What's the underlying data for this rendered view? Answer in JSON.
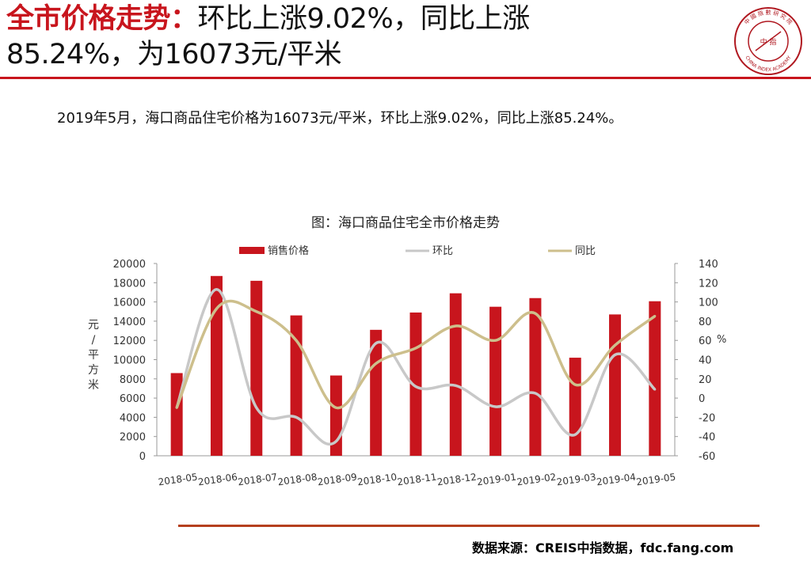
{
  "header": {
    "title_highlight": "全市价格走势：",
    "title_line1_rest": "环比上涨9.02%，同比上涨",
    "title_line2": "85.24%，为16073元/平米"
  },
  "logo": {
    "top_text": "中 國 指 數 研 究 院",
    "center_text": "中 指",
    "bottom_text": "CHINA INDEX ACADEMY"
  },
  "summary": "2019年5月，海口商品住宅价格为16073元/平米，环比上涨9.02%，同比上涨85.24%。",
  "source": "数据来源：CREIS中指数据，fdc.fang.com",
  "colors": {
    "accent": "#c8151d",
    "bar": "#c8151d",
    "mom_line": "#c8c8c8",
    "yoy_line": "#cdbf8c",
    "rule_bottom": "#b5401e"
  },
  "chart_data": {
    "type": "bar",
    "title": "图：海口商品住宅全市价格走势",
    "legend_position": "top",
    "grid": false,
    "categories": [
      "2018-05",
      "2018-06",
      "2018-07",
      "2018-08",
      "2018-09",
      "2018-10",
      "2018-11",
      "2018-12",
      "2019-01",
      "2019-02",
      "2019-03",
      "2019-04",
      "2019-05"
    ],
    "series": [
      {
        "name": "销售价格",
        "type": "bar",
        "axis": "left",
        "values": [
          8600,
          18700,
          18200,
          14600,
          8350,
          13100,
          14900,
          16900,
          15500,
          16400,
          10200,
          14700,
          16073
        ]
      },
      {
        "name": "环比",
        "type": "line",
        "axis": "right",
        "values": [
          -10,
          113,
          -10,
          -20,
          -45,
          57,
          12,
          13,
          -9,
          5,
          -38,
          45,
          9.02
        ]
      },
      {
        "name": "同比",
        "type": "line",
        "axis": "right",
        "values": [
          -10,
          93,
          90,
          60,
          -10,
          36,
          52,
          75,
          60,
          88,
          14,
          55,
          85.24
        ]
      }
    ],
    "ylabel_left": "元/平方米",
    "ylabel_right": "%",
    "ylim_left": [
      0,
      20000
    ],
    "yticks_left": [
      "0",
      "2000",
      "4000",
      "6000",
      "8000",
      "10000",
      "12000",
      "14000",
      "16000",
      "18000",
      "20000"
    ],
    "ylim_right": [
      -60,
      140
    ],
    "yticks_right": [
      "-60",
      "-40",
      "-20",
      "0",
      "20",
      "40",
      "60",
      "80",
      "100",
      "120",
      "140"
    ]
  }
}
